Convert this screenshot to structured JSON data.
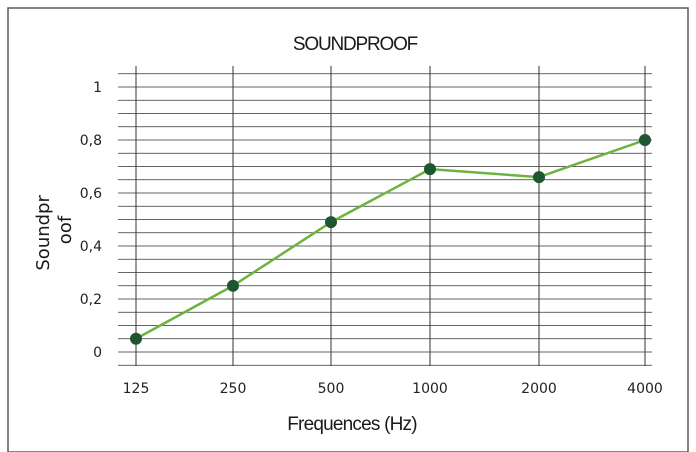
{
  "chart_data": {
    "type": "line",
    "title": "SOUNDPROOF",
    "xlabel": "Frequences (Hz)",
    "ylabel_lines": [
      "Soundpr",
      "oof"
    ],
    "categories": [
      "125",
      "250",
      "500",
      "1000",
      "2000",
      "4000"
    ],
    "values": [
      0.05,
      0.25,
      0.49,
      0.69,
      0.66,
      0.8
    ],
    "y_tick_labels": [
      {
        "value": 0,
        "label": "0"
      },
      {
        "value": 0.2,
        "label": "0,2"
      },
      {
        "value": 0.4,
        "label": "0,4"
      },
      {
        "value": 0.6,
        "label": "0,6"
      },
      {
        "value": 0.8,
        "label": "0,8"
      },
      {
        "value": 1,
        "label": "1"
      }
    ],
    "ylim": [
      0,
      1
    ],
    "grid": true,
    "line_color": "#6db33f",
    "marker_color": "#1e5631",
    "grid_color": "#333333"
  }
}
